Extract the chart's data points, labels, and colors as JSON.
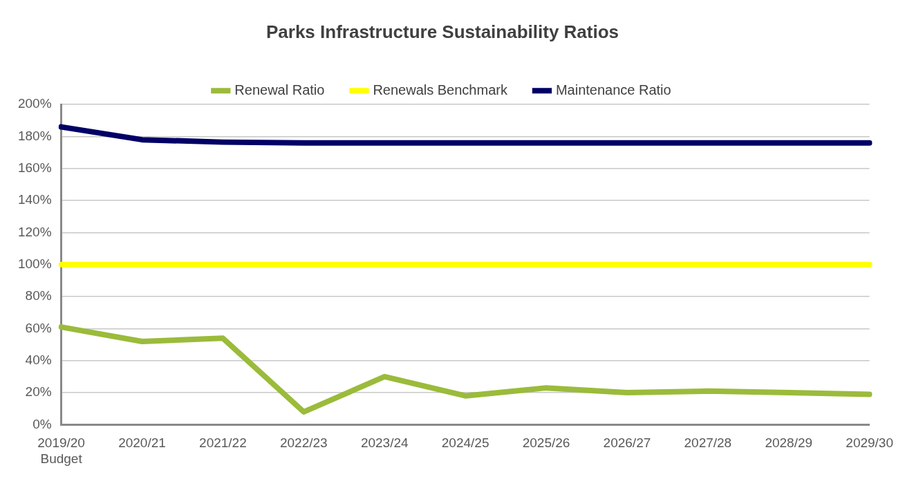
{
  "chart_data": {
    "type": "line",
    "title": "Parks Infrastructure Sustainability Ratios",
    "categories": [
      "2019/20\nBudget",
      "2020/21",
      "2021/22",
      "2022/23",
      "2023/24",
      "2024/25",
      "2025/26",
      "2026/27",
      "2027/28",
      "2028/29",
      "2029/30"
    ],
    "series": [
      {
        "name": "Renewal Ratio",
        "color": "#9bbb3b",
        "values": [
          61,
          52,
          54,
          8,
          30,
          18,
          23,
          20,
          21,
          20,
          19
        ]
      },
      {
        "name": "Renewals Benchmark",
        "color": "#ffff00",
        "values": [
          100,
          100,
          100,
          100,
          100,
          100,
          100,
          100,
          100,
          100,
          100
        ]
      },
      {
        "name": "Maintenance Ratio",
        "color": "#000066",
        "values": [
          186,
          178,
          176.5,
          176,
          176,
          176,
          176,
          176,
          176,
          176,
          176
        ]
      }
    ],
    "ylim": [
      0,
      200
    ],
    "yticks": [
      {
        "value": 0,
        "label": "0%"
      },
      {
        "value": 20,
        "label": "20%"
      },
      {
        "value": 40,
        "label": "40%"
      },
      {
        "value": 60,
        "label": "60%"
      },
      {
        "value": 80,
        "label": "80%"
      },
      {
        "value": 100,
        "label": "100%"
      },
      {
        "value": 120,
        "label": "120%"
      },
      {
        "value": 140,
        "label": "140%"
      },
      {
        "value": 160,
        "label": "160%"
      },
      {
        "value": 180,
        "label": "180%"
      },
      {
        "value": 200,
        "label": "200%"
      }
    ],
    "grid": "y",
    "legend": "top",
    "marker": "none",
    "line_style": "solid"
  }
}
